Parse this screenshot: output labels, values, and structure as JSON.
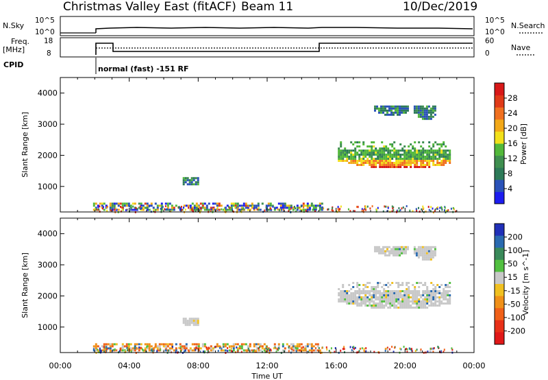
{
  "header": {
    "title": "Christmas Valley East (fitACF)",
    "beam": "Beam 11",
    "date": "10/Dec/2019"
  },
  "strips": {
    "nsky_label": "N.Sky",
    "nsky_ticks": [
      "10^5",
      "10^0"
    ],
    "nsky_right_ticks": [
      "10^5",
      "10^0"
    ],
    "nsearch_label": "N.Search",
    "freq_label_line1": "Freq.",
    "freq_label_line2": "[MHz]",
    "freq_ticks": [
      "18",
      "8"
    ],
    "nave_ticks": [
      "60",
      "0"
    ],
    "nave_label": "Nave",
    "cpid_label": "CPID",
    "cpid_text": "normal (fast) -151 RF"
  },
  "axes": {
    "ylabel": "Slant Range [km]",
    "xlabel": "Time UT",
    "xticks": [
      "00:00",
      "04:00",
      "08:00",
      "12:00",
      "16:00",
      "20:00",
      "00:00"
    ],
    "yticks": [
      "1000",
      "2000",
      "3000",
      "4000"
    ]
  },
  "chart_data": [
    {
      "type": "heatmap",
      "name": "power",
      "xlim": [
        0,
        24
      ],
      "ylim": [
        180,
        4500
      ],
      "colorbar": {
        "label": "Power [dB]",
        "ticks": [
          "4",
          "8",
          "12",
          "16",
          "20",
          "24",
          "28"
        ],
        "colors": [
          "#1c1cf0",
          "#2a52b8",
          "#2d7a58",
          "#3f8f50",
          "#52b83a",
          "#f2e01a",
          "#f2a818",
          "#f07020",
          "#e03a18",
          "#d81818"
        ]
      },
      "regions": [
        {
          "x": [
            1.9,
            15.2
          ],
          "y": [
            250,
            480
          ],
          "value": 16
        },
        {
          "x": [
            7.1,
            8.0
          ],
          "y": [
            1050,
            1300
          ],
          "value": 10
        },
        {
          "x": [
            16.1,
            22.6
          ],
          "y": [
            1450,
            2450
          ],
          "value": 20
        },
        {
          "x": [
            18.2,
            20.2
          ],
          "y": [
            3300,
            3600
          ],
          "value": 10
        },
        {
          "x": [
            20.5,
            21.8
          ],
          "y": [
            3150,
            3600
          ],
          "value": 10
        }
      ]
    },
    {
      "type": "heatmap",
      "name": "velocity",
      "xlim": [
        0,
        24
      ],
      "ylim": [
        180,
        4500
      ],
      "colorbar": {
        "label": "Velocity [m s^-1]",
        "ticks": [
          "200",
          "100",
          "50",
          "15",
          "-15",
          "-50",
          "-100",
          "-200"
        ],
        "colors": [
          "#2030b8",
          "#2a6ab0",
          "#3a8a5a",
          "#52c040",
          "#c8c8c8",
          "#f0c020",
          "#f09018",
          "#f06018",
          "#e83018",
          "#e01818"
        ]
      },
      "regions": [
        {
          "x": [
            1.9,
            15.2
          ],
          "y": [
            250,
            480
          ],
          "value": -40
        },
        {
          "x": [
            7.1,
            8.0
          ],
          "y": [
            1050,
            1300
          ],
          "value": 0
        },
        {
          "x": [
            16.1,
            22.6
          ],
          "y": [
            1450,
            2450
          ],
          "value": 0
        },
        {
          "x": [
            18.2,
            20.2
          ],
          "y": [
            3300,
            3600
          ],
          "value": 0
        },
        {
          "x": [
            20.5,
            21.8
          ],
          "y": [
            3150,
            3600
          ],
          "value": 0
        }
      ]
    }
  ]
}
